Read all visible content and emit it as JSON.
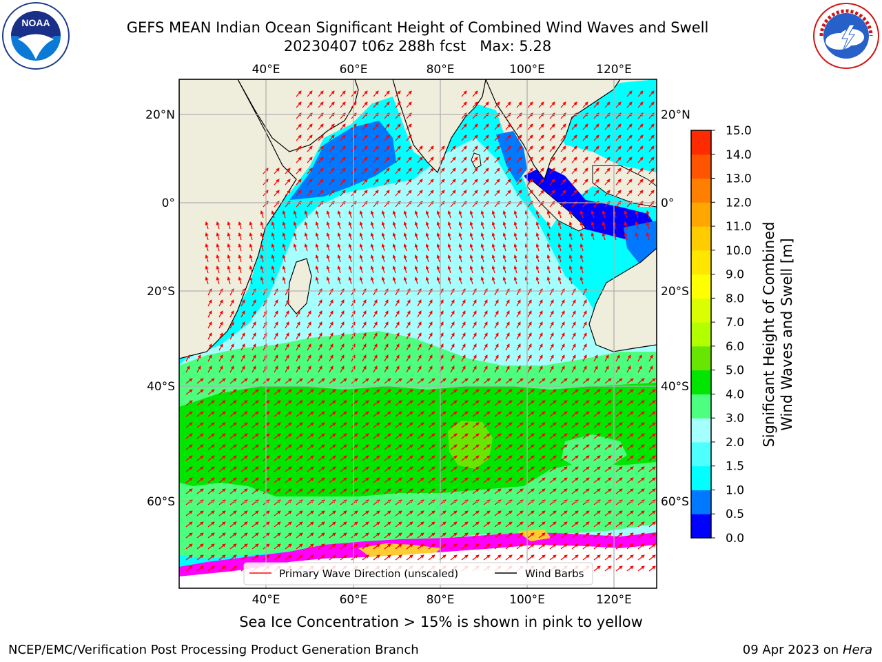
{
  "header": {
    "title": "GEFS MEAN Indian Ocean Significant Height of Combined Wind Waves and Swell",
    "subtitle_run": "20230407 t06z 288h fcst",
    "subtitle_max": "Max: 5.28"
  },
  "logos": {
    "noaa_text": "NOAA",
    "noaa_ring": "NATIONAL OCEANIC AND ATMOSPHERIC ADMINISTRATION · U.S. DEPARTMENT OF COMMERCE",
    "nws_ring": "NATIONAL WEATHER SERVICE"
  },
  "map": {
    "lon_ticks_top": [
      "40°E",
      "60°E",
      "80°E",
      "100°E",
      "120°E"
    ],
    "lon_ticks_bottom": [
      "40°E",
      "60°E",
      "80°E",
      "100°E",
      "120°E"
    ],
    "lat_ticks_left": [
      "20°N",
      "0°",
      "20°S",
      "40°S",
      "60°S"
    ],
    "lat_ticks_right": [
      "20°N",
      "0°",
      "20°S",
      "40°S",
      "60°S"
    ],
    "colors": {
      "land": "#efeddc",
      "ocean_default": "#00ffff",
      "wave_arrow": "#ff0000",
      "wind_barb": "#000000"
    },
    "legend": {
      "wave_label": "Primary Wave Direction (unscaled)",
      "wind_label": "Wind Barbs"
    }
  },
  "colorbar": {
    "label_line1": "Significant Height of Combined",
    "label_line2": "Wind Waves and Swell [m]",
    "ticks": [
      "0.0",
      "0.5",
      "1.0",
      "1.5",
      "2.0",
      "3.0",
      "4.0",
      "5.0",
      "6.0",
      "7.0",
      "8.0",
      "9.0",
      "10.0",
      "11.0",
      "12.0",
      "13.0",
      "14.0",
      "15.0"
    ],
    "colors": [
      "#0000ff",
      "#0078ff",
      "#00ffff",
      "#4dffff",
      "#a6ffff",
      "#4dff7f",
      "#00e600",
      "#66e600",
      "#b2ff00",
      "#d9ff00",
      "#ffff00",
      "#ffe600",
      "#ffcc00",
      "#ffa600",
      "#ff8000",
      "#ff5500",
      "#ff2b00"
    ]
  },
  "caption": "Sea Ice Concentration > 15% is shown in pink to yellow",
  "footer": {
    "left": "NCEP/EMC/Verification Post Processing Product Generation Branch",
    "right_date": "09 Apr 2023 on",
    "right_machine": "Hera"
  }
}
